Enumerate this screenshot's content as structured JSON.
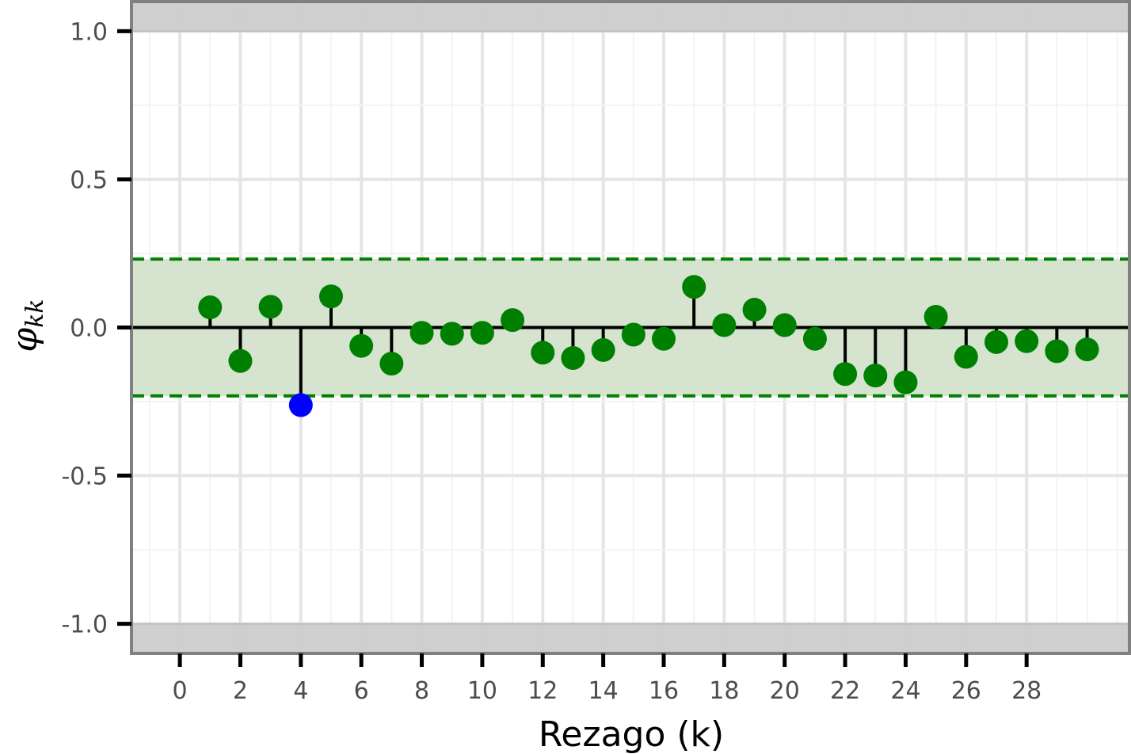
{
  "chart_data": {
    "type": "scatter",
    "title": "",
    "xlabel": "Rezago (k)",
    "ylabel": {
      "symbol": "φ",
      "subscript": "kk"
    },
    "xlim": [
      -1.6,
      31.4
    ],
    "ylim": [
      -1.1,
      1.1
    ],
    "xticks": [
      0,
      2,
      4,
      6,
      8,
      10,
      12,
      14,
      16,
      18,
      20,
      22,
      24,
      26,
      28
    ],
    "xtick_labels": [
      "0",
      "2",
      "4",
      "6",
      "8",
      "10",
      "12",
      "14",
      "16",
      "18",
      "20",
      "22",
      "24",
      "26",
      "28"
    ],
    "yticks": [
      -1.0,
      -0.5,
      0.0,
      0.5,
      1.0
    ],
    "ytick_labels": [
      "-1.0",
      "-0.5",
      "0.0",
      "0.5",
      "1.0"
    ],
    "grid": true,
    "confidence_bound": 0.231,
    "colors": {
      "inside": "#008000",
      "outside": "#0000ff",
      "band": "#d5e3cf",
      "bound_line": "#008000",
      "stem": "#000000",
      "panel_border": "#808080",
      "grid": "#e5e5e5",
      "out_of_range_shade": "#cccccc"
    },
    "x": [
      1,
      2,
      3,
      4,
      5,
      6,
      7,
      8,
      9,
      10,
      11,
      12,
      13,
      14,
      15,
      16,
      17,
      18,
      19,
      20,
      21,
      22,
      23,
      24,
      25,
      26,
      27,
      28,
      29,
      30
    ],
    "values": [
      0.068,
      -0.113,
      0.07,
      -0.262,
      0.105,
      -0.062,
      -0.122,
      -0.018,
      -0.021,
      -0.018,
      0.025,
      -0.085,
      -0.103,
      -0.076,
      -0.024,
      -0.038,
      0.137,
      0.008,
      0.06,
      0.008,
      -0.038,
      -0.157,
      -0.162,
      -0.185,
      0.036,
      -0.099,
      -0.049,
      -0.046,
      -0.08,
      -0.074
    ]
  }
}
